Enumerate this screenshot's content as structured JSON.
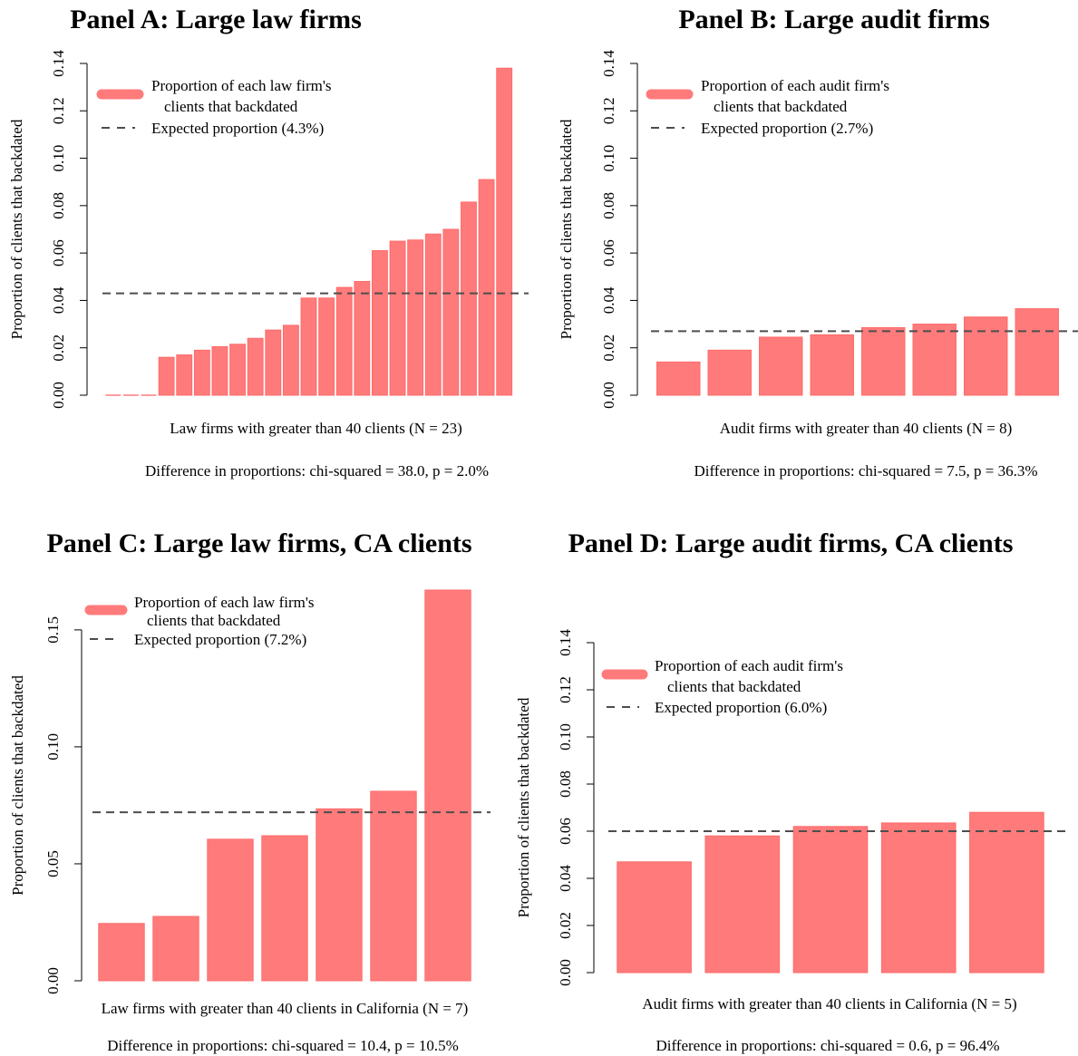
{
  "colors": {
    "bar": "#ff7b7b",
    "bar_edge": "#ff6a6a",
    "expected_line": "#4d4d4d",
    "axis": "#000000"
  },
  "chart_data": [
    {
      "type": "bar",
      "title": "Panel A: Large law firms",
      "ylabel": "Proportion of clients that backdated",
      "xlabel": "Law firms with greater than 40 clients (N = 23)",
      "stat": "Difference in proportions: chi-squared = 38.0, p = 2.0%",
      "legend": {
        "bar_label": [
          "Proportion of each law firm's",
          "clients that backdated"
        ],
        "line_label": "Expected proportion (4.3%)",
        "placement": "top-left"
      },
      "expected": 0.043,
      "ylim": [
        0,
        0.14
      ],
      "yticks": [
        "0.00",
        "0.02",
        "0.04",
        "0.06",
        "0.08",
        "0.10",
        "0.12",
        "0.14"
      ],
      "yticks_values": [
        0,
        0.02,
        0.04,
        0.06,
        0.08,
        0.1,
        0.12,
        0.14
      ],
      "values": [
        0,
        0,
        0,
        0.016,
        0.017,
        0.019,
        0.0205,
        0.0215,
        0.024,
        0.0275,
        0.0295,
        0.041,
        0.041,
        0.0455,
        0.048,
        0.061,
        0.065,
        0.0655,
        0.068,
        0.07,
        0.0815,
        0.091,
        0.138
      ]
    },
    {
      "type": "bar",
      "title": "Panel B: Large audit firms",
      "ylabel": "Proportion of clients that backdated",
      "xlabel": "Audit firms with greater than 40 clients (N = 8)",
      "stat": "Difference in proportions: chi-squared = 7.5, p = 36.3%",
      "legend": {
        "bar_label": [
          "Proportion of each audit firm's",
          "clients that backdated"
        ],
        "line_label": "Expected proportion (2.7%)",
        "placement": "top-left"
      },
      "expected": 0.027,
      "ylim": [
        0,
        0.14
      ],
      "yticks": [
        "0.00",
        "0.02",
        "0.04",
        "0.06",
        "0.08",
        "0.10",
        "0.12",
        "0.14"
      ],
      "yticks_values": [
        0,
        0.02,
        0.04,
        0.06,
        0.08,
        0.1,
        0.12,
        0.14
      ],
      "values": [
        0.014,
        0.019,
        0.0245,
        0.0255,
        0.0285,
        0.03,
        0.033,
        0.0365
      ]
    },
    {
      "type": "bar",
      "title": "Panel C: Large law firms, CA clients",
      "ylabel": "Proportion of clients that backdated",
      "xlabel": "Law firms with greater than 40 clients in California (N = 7)",
      "stat": "Difference in proportions: chi-squared = 10.4, p = 10.5%",
      "legend": {
        "bar_label": [
          "Proportion of each law firm's",
          "clients that backdated"
        ],
        "line_label": "Expected proportion (7.2%)",
        "placement": "top-left"
      },
      "expected": 0.072,
      "ylim": [
        0,
        0.167
      ],
      "yticks": [
        "0.00",
        "0.05",
        "0.10",
        "0.15"
      ],
      "yticks_values": [
        0,
        0.05,
        0.1,
        0.15
      ],
      "values": [
        0.0245,
        0.0275,
        0.0605,
        0.062,
        0.0735,
        0.081,
        0.167
      ]
    },
    {
      "type": "bar",
      "title": "Panel D: Large audit firms, CA clients",
      "ylabel": "Proportion of clients that backdated",
      "xlabel": "Audit firms with greater than 40 clients in California (N = 5)",
      "stat": "Difference in proportions: chi-squared = 0.6, p = 96.4%",
      "legend": {
        "bar_label": [
          "Proportion of each audit firm's",
          "clients that backdated"
        ],
        "line_label": "Expected proportion (6.0%)",
        "placement": "top-left"
      },
      "expected": 0.06,
      "ylim": [
        0,
        0.14
      ],
      "yticks": [
        "0.00",
        "0.02",
        "0.04",
        "0.06",
        "0.08",
        "0.10",
        "0.12",
        "0.14"
      ],
      "yticks_values": [
        0,
        0.02,
        0.04,
        0.06,
        0.08,
        0.1,
        0.12,
        0.14
      ],
      "values": [
        0.047,
        0.058,
        0.062,
        0.0635,
        0.068
      ]
    }
  ]
}
